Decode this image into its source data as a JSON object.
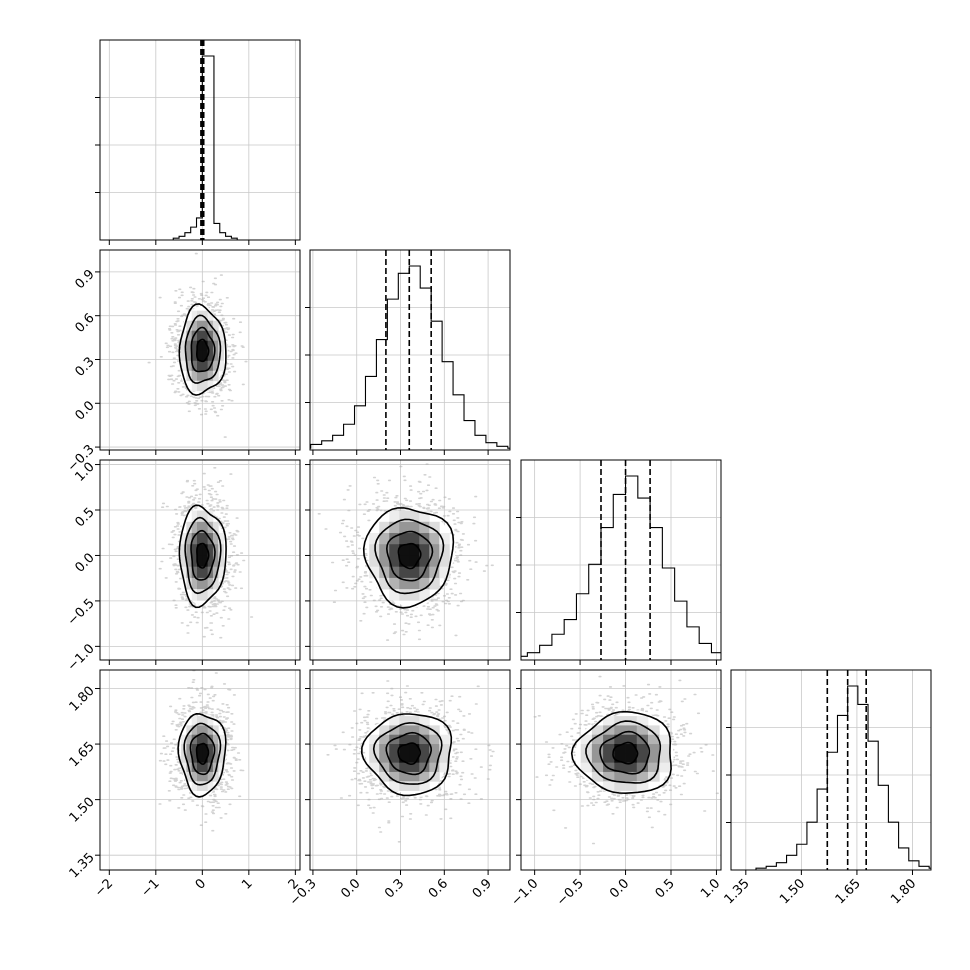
{
  "chart_data": {
    "type": "corner",
    "grid": true,
    "parameters": [
      {
        "ticks": [
          -2,
          -1,
          0,
          1,
          2
        ],
        "tick_labels": [
          "−2",
          "−1",
          "0",
          "1",
          "2"
        ],
        "range": [
          -2.2,
          2.1
        ],
        "center": 0.0,
        "sigma": 0.25,
        "quantiles": [
          -0.03,
          0.0,
          0.03
        ]
      },
      {
        "ticks": [
          -0.3,
          0.0,
          0.3,
          0.6,
          0.9
        ],
        "tick_labels": [
          "−0.3",
          "0.0",
          "0.3",
          "0.6",
          "0.9"
        ],
        "range": [
          -0.32,
          1.05
        ],
        "center": 0.36,
        "sigma": 0.15,
        "quantiles": [
          0.2,
          0.36,
          0.51
        ]
      },
      {
        "ticks": [
          -1.0,
          -0.5,
          0.0,
          0.5,
          1.0
        ],
        "tick_labels": [
          "−1.0",
          "−0.5",
          "0.0",
          "0.5",
          "1.0"
        ],
        "range": [
          -1.15,
          1.05
        ],
        "center": 0.0,
        "sigma": 0.27,
        "quantiles": [
          -0.27,
          0.0,
          0.27
        ]
      },
      {
        "ticks": [
          1.35,
          1.5,
          1.65,
          1.8
        ],
        "tick_labels": [
          "1.35",
          "1.50",
          "1.65",
          "1.80"
        ],
        "range": [
          1.31,
          1.85
        ],
        "center": 1.625,
        "sigma": 0.055,
        "quantiles": [
          1.57,
          1.625,
          1.675
        ]
      }
    ],
    "histograms": [
      [
        0,
        0,
        0,
        0,
        0,
        1,
        2,
        4,
        7,
        12,
        100,
        100,
        9,
        4,
        2,
        1,
        0,
        0,
        0,
        0
      ],
      [
        1,
        3,
        5,
        8,
        14,
        24,
        40,
        60,
        82,
        96,
        100,
        88,
        70,
        48,
        30,
        16,
        8,
        4,
        2,
        1
      ],
      [
        1,
        2,
        4,
        8,
        14,
        22,
        36,
        52,
        72,
        90,
        100,
        88,
        72,
        50,
        32,
        18,
        9,
        4,
        2,
        1
      ],
      [
        0,
        1,
        2,
        4,
        8,
        14,
        26,
        44,
        64,
        84,
        100,
        90,
        70,
        46,
        26,
        12,
        5,
        2,
        1,
        0
      ]
    ]
  }
}
